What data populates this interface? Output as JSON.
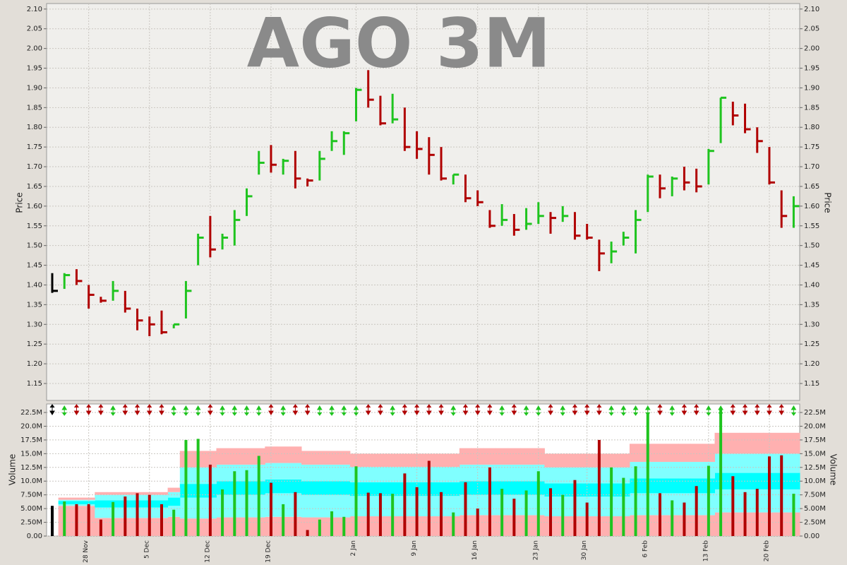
{
  "chart_data": [
    {
      "type": "ohlc",
      "title": "AGO 3M",
      "ylabel": "Price",
      "categories": [
        null,
        null,
        null,
        "28 Nov",
        null,
        null,
        null,
        null,
        "5 Dec",
        null,
        null,
        null,
        null,
        "12 Dec",
        null,
        null,
        null,
        null,
        "19 Dec",
        null,
        null,
        null,
        null,
        null,
        null,
        "2 Jan",
        null,
        null,
        null,
        null,
        "9 Jan",
        null,
        null,
        null,
        null,
        "16 Jan",
        null,
        null,
        null,
        null,
        "23 Jan",
        null,
        null,
        null,
        "30 Jan",
        null,
        null,
        null,
        null,
        "6 Feb",
        null,
        null,
        null,
        null,
        "13 Feb",
        null,
        null,
        null,
        null,
        "20 Feb",
        null,
        null
      ],
      "high": [
        1.43,
        1.43,
        1.44,
        1.4,
        1.37,
        1.41,
        1.385,
        1.34,
        1.32,
        1.335,
        1.3,
        1.41,
        1.53,
        1.575,
        1.53,
        1.59,
        1.645,
        1.74,
        1.755,
        1.72,
        1.74,
        1.67,
        1.74,
        1.79,
        1.79,
        1.9,
        1.945,
        1.88,
        1.885,
        1.85,
        1.79,
        1.775,
        1.75,
        1.68,
        1.68,
        1.64,
        1.59,
        1.605,
        1.58,
        1.595,
        1.61,
        1.585,
        1.6,
        1.585,
        1.555,
        1.515,
        1.51,
        1.535,
        1.59,
        1.68,
        1.68,
        1.675,
        1.7,
        1.695,
        1.745,
        1.875,
        1.865,
        1.86,
        1.8,
        1.75,
        1.64,
        1.625
      ],
      "low": [
        1.38,
        1.39,
        1.4,
        1.34,
        1.355,
        1.36,
        1.33,
        1.285,
        1.27,
        1.275,
        1.29,
        1.315,
        1.45,
        1.47,
        1.49,
        1.5,
        1.575,
        1.68,
        1.685,
        1.68,
        1.645,
        1.65,
        1.665,
        1.74,
        1.73,
        1.815,
        1.85,
        1.805,
        1.81,
        1.74,
        1.72,
        1.68,
        1.665,
        1.655,
        1.61,
        1.6,
        1.545,
        1.55,
        1.525,
        1.54,
        1.555,
        1.53,
        1.56,
        1.515,
        1.515,
        1.435,
        1.455,
        1.5,
        1.48,
        1.585,
        1.62,
        1.625,
        1.64,
        1.635,
        1.655,
        1.76,
        1.805,
        1.785,
        1.735,
        1.655,
        1.545,
        1.545
      ],
      "close": [
        1.385,
        1.425,
        1.41,
        1.375,
        1.36,
        1.385,
        1.34,
        1.31,
        1.3,
        1.28,
        1.3,
        1.385,
        1.52,
        1.49,
        1.52,
        1.565,
        1.625,
        1.71,
        1.705,
        1.715,
        1.67,
        1.665,
        1.72,
        1.765,
        1.785,
        1.895,
        1.87,
        1.81,
        1.82,
        1.75,
        1.745,
        1.73,
        1.67,
        1.68,
        1.62,
        1.61,
        1.55,
        1.565,
        1.54,
        1.555,
        1.575,
        1.57,
        1.575,
        1.525,
        1.52,
        1.48,
        1.485,
        1.52,
        1.565,
        1.675,
        1.645,
        1.67,
        1.66,
        1.65,
        1.74,
        1.875,
        1.83,
        1.795,
        1.765,
        1.66,
        1.575,
        1.6
      ],
      "up_color": "#1fc41f",
      "down_color": "#b00000",
      "first_color": "#000000",
      "ylim": [
        1.107,
        2.114
      ],
      "yticks": [
        1.15,
        {
          "value": 1.2,
          "label": "1.20"
        },
        1.25,
        {
          "value": 1.3,
          "label": "1.30"
        },
        1.35,
        {
          "value": 1.4,
          "label": "1.40"
        },
        1.45,
        {
          "value": 1.5,
          "label": "1.50"
        },
        1.55,
        {
          "value": 1.6,
          "label": "1.60"
        },
        1.65,
        {
          "value": 1.7,
          "label": "1.70"
        },
        1.75,
        {
          "value": 1.8,
          "label": "1.80"
        },
        1.85,
        {
          "value": 1.9,
          "label": "1.90"
        },
        1.95,
        {
          "value": 2,
          "label": "2.00"
        },
        2.05,
        {
          "value": 2.1,
          "label": "2.10"
        }
      ],
      "grid": true
    },
    {
      "type": "bar",
      "ylabel": "Volume",
      "values": [
        5.5,
        6.3,
        5.8,
        5.8,
        3.0,
        6.2,
        7.2,
        7.8,
        7.5,
        5.8,
        4.8,
        17.5,
        17.7,
        13.0,
        8.5,
        11.8,
        12.0,
        14.6,
        9.7,
        5.8,
        8.0,
        1.1,
        3.0,
        4.5,
        3.5,
        12.7,
        7.9,
        7.8,
        7.7,
        11.4,
        8.9,
        13.7,
        8.0,
        4.3,
        9.8,
        5.0,
        12.5,
        8.6,
        6.8,
        8.3,
        11.8,
        8.7,
        7.5,
        10.2,
        6.1,
        17.5,
        12.5,
        10.6,
        12.7,
        22.5,
        7.8,
        6.5,
        6.1,
        9.1,
        12.8,
        23.0,
        10.9,
        8.0,
        8.6,
        14.5,
        14.7,
        7.7
      ],
      "band_colors": [
        "#ffb0b0",
        "#80ffff",
        "#00ffff",
        "#80ffff",
        "#ffb0b0"
      ],
      "band_levels": [
        [
          null,
          5.5,
          5.5,
          5.5,
          3.3,
          3.3,
          3.3,
          3.3,
          3.3,
          3.3,
          3.5,
          3.2,
          3.2,
          3.2,
          3.4,
          3.4,
          3.4,
          3.4,
          3.5,
          3.5,
          3.5,
          3.4,
          3.4,
          3.4,
          3.4,
          3.6,
          3.6,
          3.6,
          3.6,
          3.6,
          3.6,
          3.6,
          3.6,
          3.6,
          3.8,
          3.8,
          3.8,
          3.8,
          3.8,
          3.8,
          3.8,
          3.6,
          3.6,
          3.6,
          3.6,
          3.6,
          3.6,
          3.6,
          3.8,
          3.8,
          3.8,
          3.8,
          3.8,
          3.8,
          3.8,
          4.3,
          4.3,
          4.3,
          4.3,
          4.3,
          4.3,
          4.3
        ],
        [
          null,
          5.8,
          5.8,
          5.8,
          5.2,
          5.2,
          5.2,
          5.2,
          5.2,
          5.2,
          5.5,
          7.0,
          7.0,
          7.0,
          7.5,
          7.5,
          7.5,
          7.5,
          7.8,
          7.8,
          7.8,
          7.5,
          7.5,
          7.5,
          7.5,
          7.3,
          7.3,
          7.3,
          7.3,
          7.3,
          7.3,
          7.3,
          7.3,
          7.3,
          7.5,
          7.5,
          7.5,
          7.5,
          7.5,
          7.5,
          7.5,
          7.2,
          7.2,
          7.2,
          7.2,
          7.2,
          7.2,
          7.2,
          7.8,
          7.8,
          7.8,
          7.8,
          7.8,
          7.8,
          7.8,
          8.5,
          8.5,
          8.5,
          8.5,
          8.5,
          8.5,
          8.5
        ],
        [
          null,
          6.4,
          6.4,
          6.4,
          6.5,
          6.5,
          6.5,
          6.5,
          6.5,
          6.5,
          7.0,
          9.5,
          9.5,
          9.5,
          10.0,
          10.0,
          10.0,
          10.0,
          10.3,
          10.3,
          10.3,
          10.0,
          10.0,
          10.0,
          10.0,
          9.8,
          9.8,
          9.8,
          9.8,
          9.8,
          9.8,
          9.8,
          9.8,
          9.8,
          10.0,
          10.0,
          10.0,
          10.0,
          10.0,
          10.0,
          10.0,
          9.6,
          9.6,
          9.6,
          9.6,
          9.6,
          9.6,
          9.6,
          10.5,
          10.5,
          10.5,
          10.5,
          10.5,
          10.5,
          10.5,
          11.5,
          11.5,
          11.5,
          11.5,
          11.5,
          11.5,
          11.5
        ],
        [
          null,
          6.6,
          6.6,
          6.6,
          7.5,
          7.5,
          7.5,
          7.5,
          7.5,
          7.5,
          8.0,
          12.5,
          12.5,
          12.5,
          13.0,
          13.0,
          13.0,
          13.0,
          13.3,
          13.3,
          13.3,
          13.0,
          13.0,
          13.0,
          13.0,
          12.6,
          12.6,
          12.6,
          12.6,
          12.6,
          12.6,
          12.6,
          12.6,
          12.6,
          13.0,
          13.0,
          13.0,
          13.0,
          13.0,
          13.0,
          13.0,
          12.5,
          12.5,
          12.5,
          12.5,
          12.5,
          12.5,
          12.5,
          13.5,
          13.5,
          13.5,
          13.5,
          13.5,
          13.5,
          13.5,
          15.0,
          15.0,
          15.0,
          15.0,
          15.0,
          15.0,
          15.0
        ],
        [
          null,
          7.0,
          7.0,
          7.0,
          8.0,
          8.0,
          8.0,
          8.0,
          8.0,
          8.0,
          8.8,
          15.5,
          15.5,
          15.5,
          16.0,
          16.0,
          16.0,
          16.0,
          16.3,
          16.3,
          16.3,
          15.5,
          15.5,
          15.5,
          15.5,
          15.0,
          15.0,
          15.0,
          15.0,
          15.0,
          15.0,
          15.0,
          15.0,
          15.0,
          16.0,
          16.0,
          16.0,
          16.0,
          16.0,
          16.0,
          16.0,
          15.0,
          15.0,
          15.0,
          15.0,
          15.0,
          15.0,
          15.0,
          16.8,
          16.8,
          16.8,
          16.8,
          16.8,
          16.8,
          16.8,
          18.8,
          18.8,
          18.8,
          18.8,
          18.8,
          18.8,
          18.8
        ]
      ],
      "ylim": [
        0,
        24.05
      ],
      "yticks": [
        {
          "value": 0,
          "label": "0.00"
        },
        {
          "value": 2.5,
          "label": "2.50M"
        },
        {
          "value": 5,
          "label": "5.00M"
        },
        {
          "value": 7.5,
          "label": "7.50M"
        },
        {
          "value": 10,
          "label": "10.0M"
        },
        {
          "value": 12.5,
          "label": "12.5M"
        },
        {
          "value": 15,
          "label": "15.0M"
        },
        {
          "value": 17.5,
          "label": "17.5M"
        },
        {
          "value": 20,
          "label": "20.0M"
        },
        {
          "value": 22.5,
          "label": "22.5M"
        }
      ],
      "grid": true
    }
  ]
}
